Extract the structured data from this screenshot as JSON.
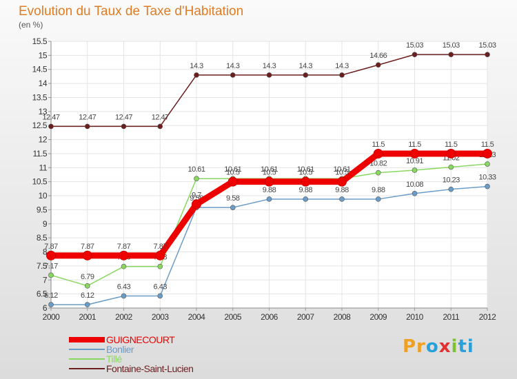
{
  "header": {
    "title": "Evolution du Taux de Taxe d'Habitation",
    "unit": "(en %)"
  },
  "brand": {
    "parts": [
      "Pr",
      "o",
      "x",
      "i",
      "ti"
    ],
    "colors": [
      "#f0a020",
      "#2aa0d8",
      "#e03030",
      "#80c030",
      "#2aa0d8"
    ]
  },
  "chart_data": {
    "type": "line",
    "title": "Evolution du Taux de Taxe d'Habitation",
    "ylabel": "(en %)",
    "xlabel": "",
    "x": [
      "2000",
      "2001",
      "2002",
      "2003",
      "2004",
      "2005",
      "2006",
      "2007",
      "2008",
      "2009",
      "2010",
      "2011",
      "2012"
    ],
    "ylim": [
      6,
      15.5
    ],
    "yticks": [
      "6",
      "6.5",
      "7",
      "7.5",
      "8",
      "8.5",
      "9",
      "9.5",
      "10",
      "10.5",
      "11",
      "11.5",
      "12",
      "12.5",
      "13",
      "13.5",
      "14",
      "14.5",
      "15",
      "15.5"
    ],
    "grid": true,
    "legend": "bottom-left",
    "series": [
      {
        "name": "Fontaine-Saint-Lucien",
        "color": "#6b1e1e",
        "values": [
          12.47,
          12.47,
          12.47,
          12.47,
          14.3,
          14.3,
          14.3,
          14.3,
          14.3,
          14.66,
          15.03,
          15.03,
          15.03
        ],
        "labels": [
          "12.47",
          "12.47",
          "12.47",
          "12.47",
          "14.3",
          "14.3",
          "14.3",
          "14.3",
          "14.3",
          "14.66",
          "15.03",
          "15.03",
          "15.03"
        ]
      },
      {
        "name": "Tillé",
        "color": "#88d860",
        "values": [
          7.17,
          6.79,
          7.48,
          7.48,
          10.61,
          10.61,
          10.61,
          10.61,
          10.61,
          10.82,
          10.91,
          11.02,
          11.13
        ],
        "labels": [
          "7.17",
          "6.79",
          "7.48",
          "7.48",
          "10.61",
          "10.61",
          "10.61",
          "10.61",
          "10.61",
          "10.82",
          "10.91",
          "11.02",
          "11.13"
        ]
      },
      {
        "name": "Bonlier",
        "color": "#6a9cc8",
        "values": [
          6.12,
          6.12,
          6.43,
          6.43,
          9.58,
          9.58,
          9.88,
          9.88,
          9.88,
          9.88,
          10.08,
          10.23,
          10.33
        ],
        "labels": [
          "6.12",
          "6.12",
          "6.43",
          "6.43",
          "9.58",
          "9.58",
          "9.88",
          "9.88",
          "9.88",
          "9.88",
          "10.08",
          "10.23",
          "10.33"
        ]
      },
      {
        "name": "GUIGNECOURT",
        "color": "#ee0000",
        "values": [
          7.87,
          7.87,
          7.87,
          7.87,
          9.7,
          10.5,
          10.5,
          10.5,
          10.5,
          11.5,
          11.5,
          11.5,
          11.5
        ],
        "labels": [
          "7.87",
          "7.87",
          "7.87",
          "7.87",
          "9.7",
          "10.5",
          "10.5",
          "10.5",
          "10.5",
          "11.5",
          "11.5",
          "11.5",
          "11.5"
        ]
      }
    ],
    "legend_order": [
      "GUIGNECOURT",
      "Bonlier",
      "Tillé",
      "Fontaine-Saint-Lucien"
    ]
  }
}
